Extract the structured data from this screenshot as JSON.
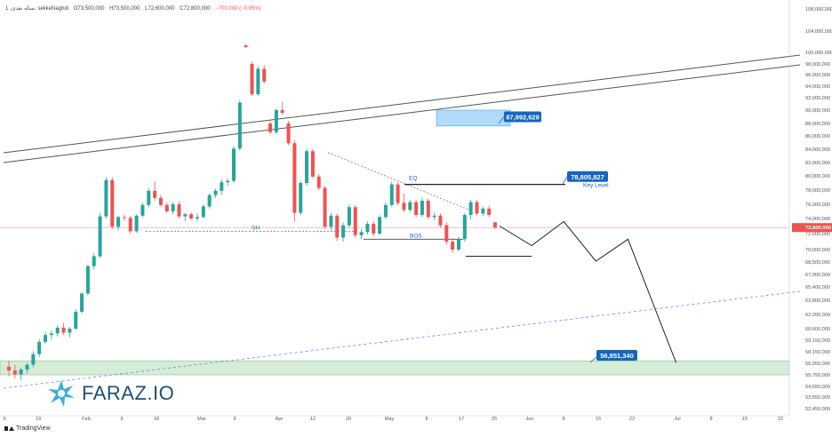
{
  "header": {
    "symbol": "1 ،سکه نقدی، sekkeNaghdi",
    "open": "O73,500,000",
    "high": "H73,500,000",
    "low": "L72,600,000",
    "close": "C72,800,000",
    "change": "−700,000 (−0.95%)"
  },
  "brand": {
    "text": "FARAZ.IO"
  },
  "footer": {
    "text": "TradingView"
  },
  "colors": {
    "up": "#26a69a",
    "down": "#ef5350",
    "zone_green": "#c8e6c9",
    "zone_blue": "#90caf9",
    "label_blue": "#1565c0",
    "price_red": "#ef5350"
  },
  "chart_data": {
    "type": "candlestick",
    "price_axis": {
      "ticks": [
        "108,000,000",
        "104,000,000",
        "100,000,000",
        "98,000,000",
        "96,000,000",
        "94,000,000",
        "92,000,000",
        "90,000,000",
        "88,000,000",
        "86,000,000",
        "84,000,000",
        "82,000,000",
        "80,000,000",
        "78,000,000",
        "76,000,000",
        "74,000,000",
        "72,000,000",
        "70,000,000",
        "68,500,000",
        "67,000,000",
        "65,400,000",
        "63,800,000",
        "62,200,000",
        "60,600,000",
        "59,150,000",
        "58,150,000",
        "56,950,000",
        "55,750,000",
        "54,650,000",
        "53,550,000",
        "52,450,000"
      ],
      "current_price": "72,800,000"
    },
    "time_axis": {
      "ticks": [
        "9",
        "19",
        "Feb",
        "9",
        "18",
        "Mar",
        "9",
        "Apr",
        "12",
        "20",
        "May",
        "8",
        "17",
        "25",
        "Jun",
        "8",
        "15",
        "22",
        "Jul",
        "8",
        "15",
        "22"
      ]
    },
    "annotations": {
      "zone_label": "87,992,629",
      "key_level_value": "78,805,827",
      "key_level_text": "Key Level",
      "target_value": "56,851,340",
      "sh": "SH",
      "bos": "BOS",
      "eq": "EQ"
    },
    "candles": [
      {
        "o": 56.6,
        "h": 57.2,
        "l": 55.6,
        "c": 56.2
      },
      {
        "o": 56.2,
        "h": 56.8,
        "l": 55.4,
        "c": 55.8
      },
      {
        "o": 55.8,
        "h": 56.5,
        "l": 55.2,
        "c": 56.3
      },
      {
        "o": 56.3,
        "h": 57.0,
        "l": 55.9,
        "c": 56.8
      },
      {
        "o": 56.8,
        "h": 58.2,
        "l": 56.5,
        "c": 57.9
      },
      {
        "o": 57.9,
        "h": 59.3,
        "l": 57.6,
        "c": 59.0
      },
      {
        "o": 59.0,
        "h": 60.2,
        "l": 58.8,
        "c": 59.8
      },
      {
        "o": 59.8,
        "h": 60.4,
        "l": 59.2,
        "c": 60.0
      },
      {
        "o": 60.0,
        "h": 61.0,
        "l": 59.6,
        "c": 60.7
      },
      {
        "o": 60.7,
        "h": 61.2,
        "l": 59.8,
        "c": 60.1
      },
      {
        "o": 60.1,
        "h": 60.8,
        "l": 59.5,
        "c": 60.6
      },
      {
        "o": 60.6,
        "h": 62.8,
        "l": 60.4,
        "c": 62.5
      },
      {
        "o": 62.5,
        "h": 64.8,
        "l": 62.3,
        "c": 64.6
      },
      {
        "o": 64.6,
        "h": 68.2,
        "l": 64.4,
        "c": 68.0
      },
      {
        "o": 68.0,
        "h": 69.6,
        "l": 67.6,
        "c": 69.2
      },
      {
        "o": 69.2,
        "h": 74.8,
        "l": 69.0,
        "c": 74.3
      },
      {
        "o": 74.3,
        "h": 79.8,
        "l": 74.0,
        "c": 79.4
      },
      {
        "o": 79.4,
        "h": 79.8,
        "l": 72.6,
        "c": 72.9
      },
      {
        "o": 72.9,
        "h": 74.4,
        "l": 72.4,
        "c": 74.2
      },
      {
        "o": 74.2,
        "h": 74.6,
        "l": 73.7,
        "c": 74.1
      },
      {
        "o": 74.1,
        "h": 74.4,
        "l": 72.0,
        "c": 72.3
      },
      {
        "o": 72.3,
        "h": 74.6,
        "l": 72.1,
        "c": 74.4
      },
      {
        "o": 74.4,
        "h": 76.2,
        "l": 74.2,
        "c": 75.9
      },
      {
        "o": 75.9,
        "h": 78.3,
        "l": 75.6,
        "c": 77.9
      },
      {
        "o": 77.9,
        "h": 79.2,
        "l": 76.5,
        "c": 76.9
      },
      {
        "o": 76.9,
        "h": 77.3,
        "l": 75.6,
        "c": 75.9
      },
      {
        "o": 75.9,
        "h": 76.3,
        "l": 74.8,
        "c": 75.0
      },
      {
        "o": 75.0,
        "h": 76.3,
        "l": 74.6,
        "c": 76.0
      },
      {
        "o": 76.0,
        "h": 76.4,
        "l": 74.0,
        "c": 74.3
      },
      {
        "o": 74.3,
        "h": 74.8,
        "l": 73.6,
        "c": 74.6
      },
      {
        "o": 74.6,
        "h": 74.9,
        "l": 73.8,
        "c": 74.0
      },
      {
        "o": 74.0,
        "h": 74.7,
        "l": 73.6,
        "c": 74.2
      },
      {
        "o": 74.2,
        "h": 76.0,
        "l": 74.0,
        "c": 75.7
      },
      {
        "o": 75.7,
        "h": 77.5,
        "l": 75.4,
        "c": 77.3
      },
      {
        "o": 77.3,
        "h": 78.2,
        "l": 76.9,
        "c": 77.9
      },
      {
        "o": 77.9,
        "h": 79.5,
        "l": 77.3,
        "c": 79.1
      },
      {
        "o": 79.1,
        "h": 79.6,
        "l": 78.6,
        "c": 79.3
      },
      {
        "o": 79.3,
        "h": 84.5,
        "l": 79.0,
        "c": 84.1
      },
      {
        "o": 84.1,
        "h": 91.6,
        "l": 83.8,
        "c": 91.2
      },
      {
        "o": 101.3,
        "h": 101.6,
        "l": 100.8,
        "c": 101.0
      },
      {
        "o": 98.0,
        "h": 98.4,
        "l": 92.3,
        "c": 92.6
      },
      {
        "o": 92.6,
        "h": 97.6,
        "l": 92.3,
        "c": 97.1
      },
      {
        "o": 97.1,
        "h": 97.8,
        "l": 94.4,
        "c": 94.8
      },
      {
        "o": 88.0,
        "h": 88.4,
        "l": 86.3,
        "c": 86.6
      },
      {
        "o": 86.6,
        "h": 90.3,
        "l": 86.3,
        "c": 90.0
      },
      {
        "o": 90.0,
        "h": 91.3,
        "l": 89.3,
        "c": 89.6
      },
      {
        "o": 88.0,
        "h": 88.4,
        "l": 84.6,
        "c": 84.9
      },
      {
        "o": 84.9,
        "h": 85.3,
        "l": 73.6,
        "c": 74.8
      },
      {
        "o": 74.8,
        "h": 79.3,
        "l": 74.5,
        "c": 79.0
      },
      {
        "o": 79.0,
        "h": 84.1,
        "l": 78.6,
        "c": 83.7
      },
      {
        "o": 83.7,
        "h": 84.0,
        "l": 79.6,
        "c": 79.9
      },
      {
        "o": 79.9,
        "h": 80.3,
        "l": 78.0,
        "c": 78.3
      },
      {
        "o": 78.3,
        "h": 78.6,
        "l": 72.6,
        "c": 72.9
      },
      {
        "o": 72.9,
        "h": 74.8,
        "l": 72.4,
        "c": 74.4
      },
      {
        "o": 74.4,
        "h": 74.7,
        "l": 71.1,
        "c": 71.5
      },
      {
        "o": 71.5,
        "h": 73.5,
        "l": 71.0,
        "c": 73.1
      },
      {
        "o": 73.1,
        "h": 76.0,
        "l": 72.8,
        "c": 75.6
      },
      {
        "o": 75.6,
        "h": 75.9,
        "l": 71.5,
        "c": 71.8
      },
      {
        "o": 71.8,
        "h": 72.6,
        "l": 71.3,
        "c": 72.2
      },
      {
        "o": 72.2,
        "h": 73.6,
        "l": 71.9,
        "c": 73.3
      },
      {
        "o": 73.3,
        "h": 73.6,
        "l": 71.6,
        "c": 72.0
      },
      {
        "o": 72.0,
        "h": 74.5,
        "l": 71.8,
        "c": 74.2
      },
      {
        "o": 74.2,
        "h": 76.3,
        "l": 73.9,
        "c": 75.9
      },
      {
        "o": 75.9,
        "h": 79.2,
        "l": 75.6,
        "c": 78.8
      },
      {
        "o": 78.8,
        "h": 79.1,
        "l": 75.9,
        "c": 76.2
      },
      {
        "o": 76.2,
        "h": 77.5,
        "l": 74.9,
        "c": 75.2
      },
      {
        "o": 75.2,
        "h": 76.6,
        "l": 74.9,
        "c": 76.3
      },
      {
        "o": 76.3,
        "h": 76.6,
        "l": 74.2,
        "c": 74.5
      },
      {
        "o": 74.5,
        "h": 76.9,
        "l": 74.2,
        "c": 76.5
      },
      {
        "o": 76.5,
        "h": 76.8,
        "l": 73.9,
        "c": 74.2
      },
      {
        "o": 74.2,
        "h": 74.8,
        "l": 73.8,
        "c": 74.4
      },
      {
        "o": 74.4,
        "h": 74.7,
        "l": 72.8,
        "c": 73.1
      },
      {
        "o": 73.1,
        "h": 73.5,
        "l": 70.6,
        "c": 71.0
      },
      {
        "o": 71.0,
        "h": 71.4,
        "l": 69.6,
        "c": 70.0
      },
      {
        "o": 70.0,
        "h": 71.6,
        "l": 69.8,
        "c": 71.3
      },
      {
        "o": 71.3,
        "h": 74.8,
        "l": 71.0,
        "c": 74.5
      },
      {
        "o": 74.5,
        "h": 76.6,
        "l": 73.9,
        "c": 76.3
      },
      {
        "o": 76.3,
        "h": 76.6,
        "l": 74.4,
        "c": 74.7
      },
      {
        "o": 74.7,
        "h": 75.7,
        "l": 74.3,
        "c": 75.4
      },
      {
        "o": 75.4,
        "h": 75.8,
        "l": 74.2,
        "c": 74.5
      },
      {
        "o": 73.5,
        "h": 73.5,
        "l": 72.6,
        "c": 72.8
      }
    ],
    "projection_path": [
      [
        0,
        73.0
      ],
      [
        2,
        70.5
      ],
      [
        4,
        73.6
      ],
      [
        6,
        68.6
      ],
      [
        8,
        71.3
      ],
      [
        11,
        57.0
      ]
    ]
  }
}
